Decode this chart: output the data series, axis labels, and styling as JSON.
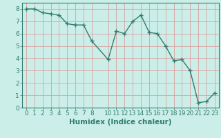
{
  "x": [
    0,
    1,
    2,
    3,
    4,
    5,
    6,
    7,
    8,
    10,
    11,
    12,
    13,
    14,
    15,
    16,
    17,
    18,
    19,
    20,
    21,
    22,
    23
  ],
  "y": [
    8.0,
    8.0,
    7.7,
    7.6,
    7.5,
    6.8,
    6.7,
    6.7,
    5.4,
    3.9,
    6.2,
    6.0,
    7.0,
    7.5,
    6.1,
    6.0,
    5.0,
    3.8,
    3.9,
    3.0,
    0.4,
    0.5,
    1.2
  ],
  "line_color": "#2e7d6e",
  "marker": "+",
  "markersize": 4,
  "linewidth": 1.0,
  "bg_color": "#cceee8",
  "grid_color": "#d8a0a0",
  "xlabel": "Humidex (Indice chaleur)",
  "xlim": [
    -0.5,
    23.5
  ],
  "ylim": [
    0,
    8.5
  ],
  "xticks": [
    0,
    1,
    2,
    3,
    4,
    5,
    6,
    7,
    8,
    10,
    11,
    12,
    13,
    14,
    15,
    16,
    17,
    18,
    19,
    20,
    21,
    22,
    23
  ],
  "yticks": [
    0,
    1,
    2,
    3,
    4,
    5,
    6,
    7,
    8
  ],
  "tick_label_fontsize": 6.5,
  "xlabel_fontsize": 7.5
}
